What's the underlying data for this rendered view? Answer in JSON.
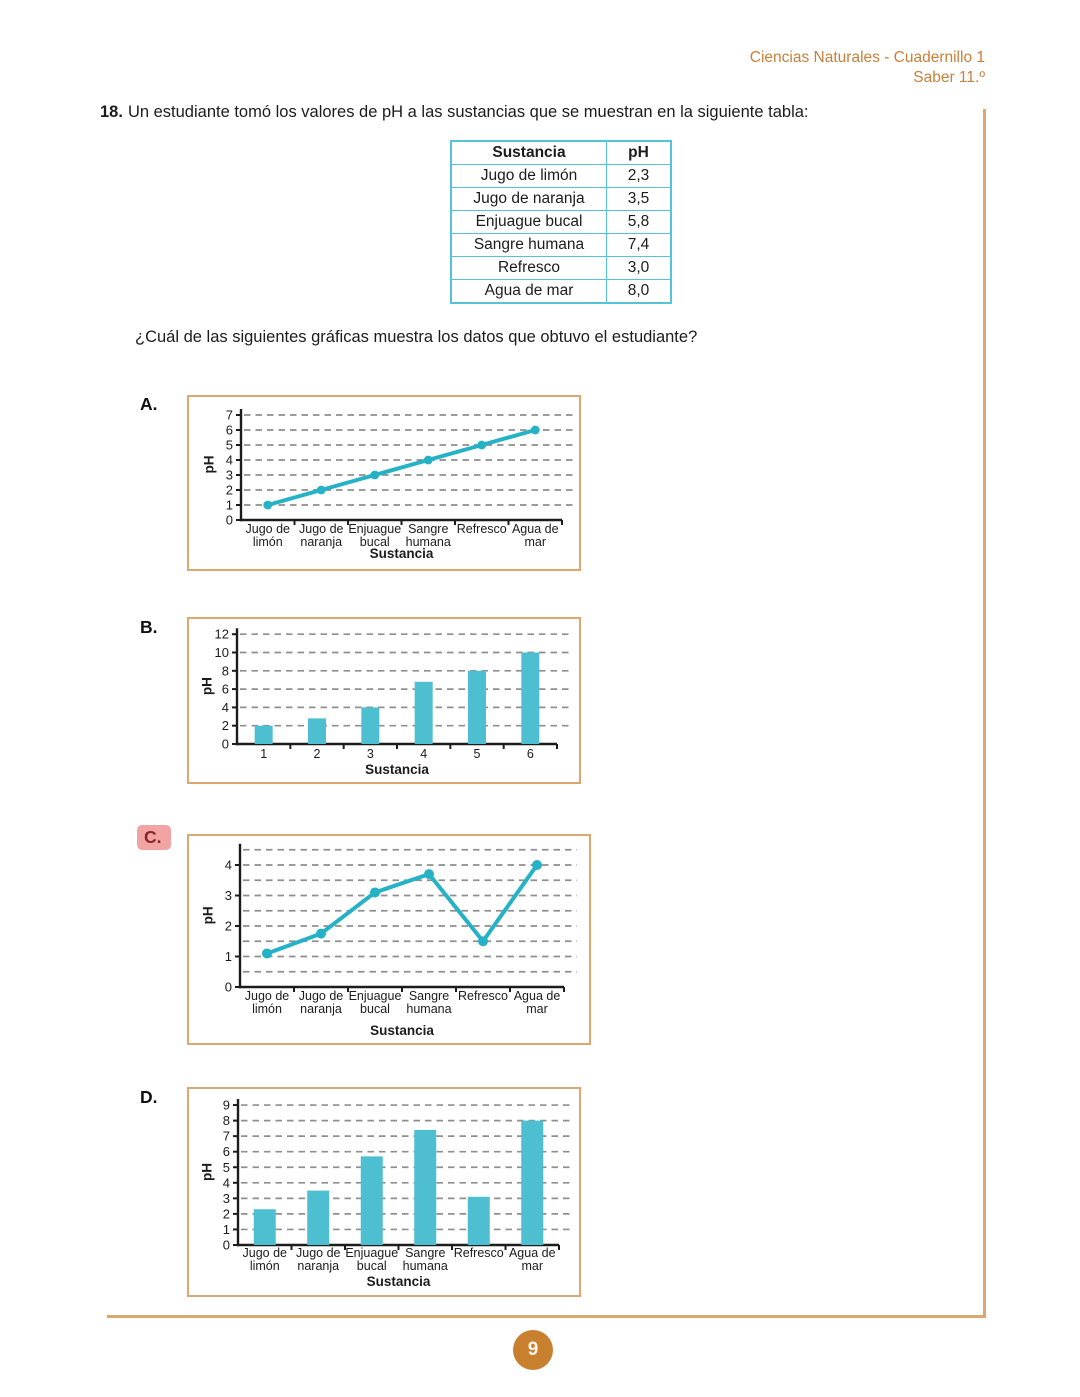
{
  "header": {
    "line1": "Ciencias Naturales - Cuadernillo 1",
    "line2": "Saber 11.º"
  },
  "question": {
    "number": "18.",
    "text": "Un estudiante tomó los valores de pH a las sustancias que se muestran en la siguiente tabla:",
    "prompt": "¿Cuál de las siguientes gráficas muestra los datos que obtuvo el estudiante?"
  },
  "table": {
    "headers": [
      "Sustancia",
      "pH"
    ],
    "rows": [
      [
        "Jugo de limón",
        "2,3"
      ],
      [
        "Jugo de naranja",
        "3,5"
      ],
      [
        "Enjuague bucal",
        "5,8"
      ],
      [
        "Sangre humana",
        "7,4"
      ],
      [
        "Refresco",
        "3,0"
      ],
      [
        "Agua de mar",
        "8,0"
      ]
    ]
  },
  "options": [
    {
      "label": "A.",
      "highlighted": false
    },
    {
      "label": "B.",
      "highlighted": false
    },
    {
      "label": "C.",
      "highlighted": true
    },
    {
      "label": "D.",
      "highlighted": false
    }
  ],
  "page": {
    "number": "9"
  },
  "colors": {
    "accent_orange": "#C8803A",
    "box_border": "#DEA76F",
    "badge_orange": "#C8802F",
    "table_border": "#55C4D6",
    "line_teal": "#25B2C6",
    "bar_teal": "#4EBFD1",
    "highlight_pink": "#F2A3A3",
    "highlight_text": "#8A2622",
    "grid_gray": "#8F8F8F",
    "ink": "#1C1C1C"
  },
  "chart_data": [
    {
      "option": "A",
      "type": "line",
      "categories": [
        "Jugo de limón",
        "Jugo de naranja",
        "Enjuague bucal",
        "Sangre humana",
        "Refresco",
        "Agua de mar"
      ],
      "category_lines": [
        [
          "Jugo de",
          "limón"
        ],
        [
          "Jugo de",
          "naranja"
        ],
        [
          "Enjuague",
          "bucal"
        ],
        [
          "Sangre",
          "humana"
        ],
        [
          "Refresco"
        ],
        [
          "Agua de",
          "mar"
        ]
      ],
      "values": [
        1,
        2,
        3,
        4,
        5,
        6
      ],
      "title": "",
      "xlabel": "Sustancia",
      "ylabel": "pH",
      "ylim": [
        0,
        7
      ],
      "yticks": [
        0,
        1,
        2,
        3,
        4,
        5,
        6,
        7
      ],
      "gridlines": [
        1,
        2,
        3,
        4,
        5,
        6,
        7
      ],
      "grid": "dashed-horizontal",
      "legend": "none"
    },
    {
      "option": "B",
      "type": "bar",
      "categories": [
        "1",
        "2",
        "3",
        "4",
        "5",
        "6"
      ],
      "category_lines": [
        [
          "1"
        ],
        [
          "2"
        ],
        [
          "3"
        ],
        [
          "4"
        ],
        [
          "5"
        ],
        [
          "6"
        ]
      ],
      "values": [
        2,
        2.8,
        4,
        6.8,
        8,
        10
      ],
      "title": "",
      "xlabel": "Sustancia",
      "ylabel": "pH",
      "ylim": [
        0,
        12
      ],
      "yticks": [
        0,
        2,
        4,
        6,
        8,
        10,
        12
      ],
      "gridlines": [
        2,
        4,
        6,
        8,
        10,
        12
      ],
      "grid": "dashed-horizontal",
      "legend": "none"
    },
    {
      "option": "C",
      "type": "line",
      "categories": [
        "Jugo de limón",
        "Jugo de naranja",
        "Enjuague bucal",
        "Sangre humana",
        "Refresco",
        "Agua de mar"
      ],
      "category_lines": [
        [
          "Jugo de",
          "limón"
        ],
        [
          "Jugo de",
          "naranja"
        ],
        [
          "Enjuague",
          "bucal"
        ],
        [
          "Sangre",
          "humana"
        ],
        [
          "Refresco"
        ],
        [
          "Agua de",
          "mar"
        ]
      ],
      "values": [
        1.1,
        1.75,
        3.1,
        3.7,
        1.5,
        4.0
      ],
      "title": "",
      "xlabel": "Sustancia",
      "ylabel": "pH",
      "ylim": [
        0,
        4.5
      ],
      "yticks": [
        0,
        1,
        2,
        3,
        4
      ],
      "gridlines": [
        0.5,
        1,
        1.5,
        2,
        2.5,
        3,
        3.5,
        4,
        4.5
      ],
      "grid": "dashed-horizontal",
      "legend": "none"
    },
    {
      "option": "D",
      "type": "bar",
      "categories": [
        "Jugo de limón",
        "Jugo de naranja",
        "Enjuague bucal",
        "Sangre humana",
        "Refresco",
        "Agua de mar"
      ],
      "category_lines": [
        [
          "Jugo de",
          "limón"
        ],
        [
          "Jugo de",
          "naranja"
        ],
        [
          "Enjuague",
          "bucal"
        ],
        [
          "Sangre",
          "humana"
        ],
        [
          "Refresco"
        ],
        [
          "Agua de",
          "mar"
        ]
      ],
      "values": [
        2.3,
        3.5,
        5.7,
        7.4,
        3.1,
        8.0
      ],
      "title": "",
      "xlabel": "Sustancia",
      "ylabel": "pH",
      "ylim": [
        0,
        9
      ],
      "yticks": [
        0,
        1,
        2,
        3,
        4,
        5,
        6,
        7,
        8,
        9
      ],
      "gridlines": [
        1,
        2,
        3,
        4,
        5,
        6,
        7,
        8,
        9
      ],
      "grid": "dashed-horizontal",
      "legend": "none"
    }
  ]
}
